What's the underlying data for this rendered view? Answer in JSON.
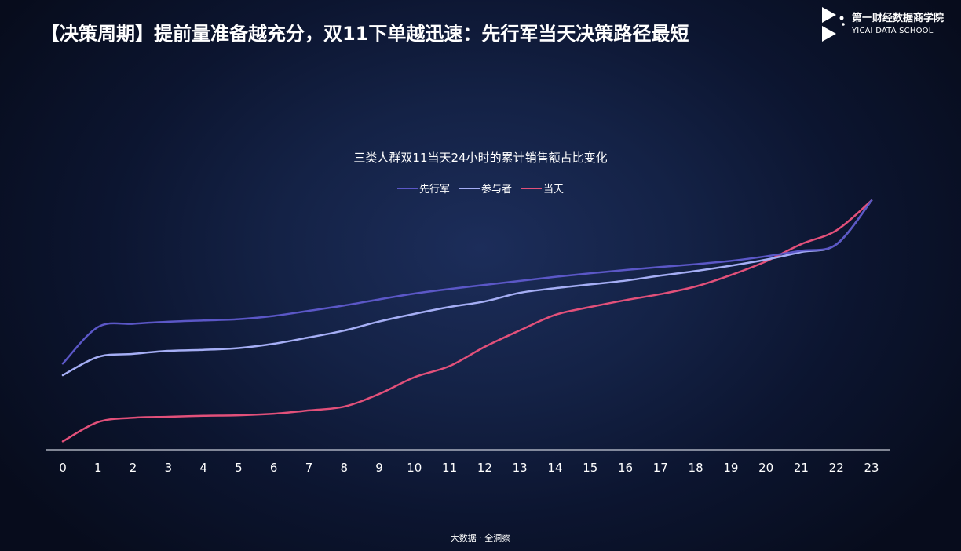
{
  "page": {
    "title": "【决策周期】提前量准备越充分，双11下单越迅速：先行军当天决策路径最短",
    "footer": "大数据 · 全洞察"
  },
  "brand": {
    "name": "第一财经数据商学院",
    "subtitle": "YICAI DATA SCHOOL",
    "logo_icon": "yicai-logo-icon"
  },
  "chart_data": {
    "type": "line",
    "title": "三类人群双11当天24小时的累计销售额占比变化",
    "xlabel": "",
    "ylabel": "",
    "x": [
      0,
      1,
      2,
      3,
      4,
      5,
      6,
      7,
      8,
      9,
      10,
      11,
      12,
      13,
      14,
      15,
      16,
      17,
      18,
      19,
      20,
      21,
      22,
      23
    ],
    "ylim": [
      0,
      1.0
    ],
    "grid": false,
    "y_axis_visible": false,
    "legend_position": "top-center",
    "smooth": true,
    "series": [
      {
        "name": "先行军",
        "color": "#5b57c7",
        "values": [
          0.34,
          0.484,
          0.497,
          0.505,
          0.51,
          0.515,
          0.528,
          0.548,
          0.569,
          0.593,
          0.616,
          0.634,
          0.65,
          0.666,
          0.682,
          0.696,
          0.709,
          0.721,
          0.732,
          0.745,
          0.763,
          0.785,
          0.81,
          0.983
        ]
      },
      {
        "name": "参与者",
        "color": "#a5aef5",
        "values": [
          0.294,
          0.366,
          0.378,
          0.39,
          0.394,
          0.401,
          0.418,
          0.443,
          0.47,
          0.506,
          0.536,
          0.563,
          0.585,
          0.619,
          0.637,
          0.652,
          0.667,
          0.687,
          0.705,
          0.726,
          0.75,
          0.78,
          0.81,
          0.983
        ]
      },
      {
        "name": "当天",
        "color": "#e2507a",
        "values": [
          0.033,
          0.109,
          0.126,
          0.13,
          0.134,
          0.136,
          0.142,
          0.155,
          0.17,
          0.22,
          0.286,
          0.33,
          0.406,
          0.471,
          0.532,
          0.563,
          0.59,
          0.614,
          0.644,
          0.689,
          0.743,
          0.811,
          0.865,
          0.983
        ]
      }
    ]
  }
}
